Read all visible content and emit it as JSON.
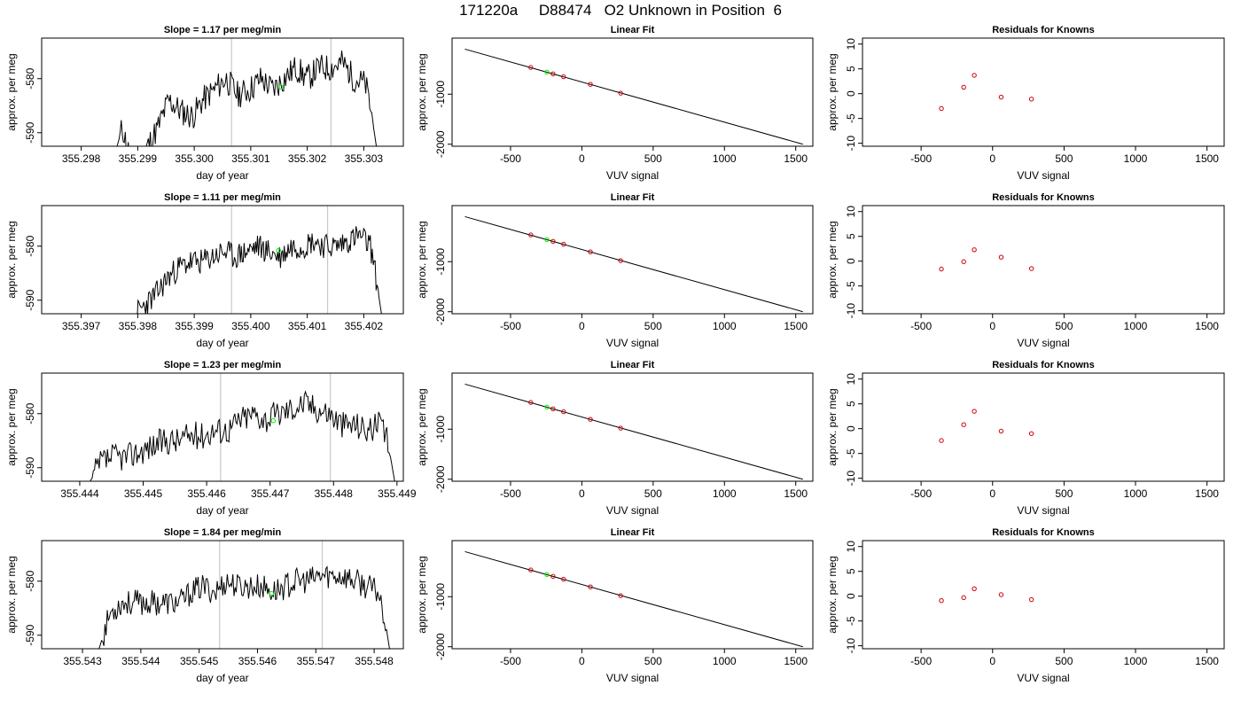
{
  "page": {
    "title": "171220a     D88474   O2 Unknown in Position  6"
  },
  "chart_data": [
    {
      "type": "line",
      "row": 0,
      "title": "Slope =  1.17  per meg/min",
      "xlabel": "day of year",
      "ylabel": "approx. per meg",
      "xlim": [
        355.2973,
        355.3037
      ],
      "ylim": [
        -592.5,
        -572.5
      ],
      "xticks": [
        355.298,
        355.299,
        355.3,
        355.301,
        355.302,
        355.303
      ],
      "xtick_labels": [
        "355.298",
        "355.299",
        "355.300",
        "355.301",
        "355.302",
        "355.303"
      ],
      "yticks": [
        -590,
        -580
      ],
      "ytick_labels": [
        "-590",
        "-580"
      ],
      "vlines": [
        355.30066,
        355.30242
      ],
      "marker": {
        "x": 355.30153,
        "y": -581.5
      },
      "series": [
        {
          "anchors": [
            [
              355.29862,
              -593
            ],
            [
              355.29873,
              -589
            ],
            [
              355.29882,
              -593
            ],
            [
              355.29895,
              -596
            ],
            [
              355.29915,
              -593
            ],
            [
              355.29936,
              -589
            ],
            [
              355.29955,
              -584
            ],
            [
              355.29976,
              -586
            ],
            [
              355.29997,
              -587
            ],
            [
              355.30015,
              -584
            ],
            [
              355.30036,
              -582
            ],
            [
              355.30056,
              -580
            ],
            [
              355.30077,
              -583
            ],
            [
              355.30098,
              -582
            ],
            [
              355.30118,
              -580
            ],
            [
              355.30139,
              -582
            ],
            [
              355.30159,
              -580
            ],
            [
              355.3018,
              -578
            ],
            [
              355.302,
              -580
            ],
            [
              355.30221,
              -578
            ],
            [
              355.30242,
              -578
            ],
            [
              355.30262,
              -577
            ],
            [
              355.30283,
              -580
            ],
            [
              355.30303,
              -581
            ],
            [
              355.30313,
              -586
            ],
            [
              355.30323,
              -593
            ]
          ],
          "seed": 11,
          "amp": 2.6
        }
      ]
    },
    {
      "type": "line",
      "row": 1,
      "title": "Slope =  1.11  per meg/min",
      "xlabel": "day of year",
      "ylabel": "approx. per meg",
      "xlim": [
        355.3963,
        355.4027
      ],
      "ylim": [
        -592.5,
        -572.5
      ],
      "xticks": [
        355.397,
        355.398,
        355.399,
        355.4,
        355.401,
        355.402
      ],
      "xtick_labels": [
        "355.397",
        "355.398",
        "355.399",
        "355.400",
        "355.401",
        "355.402"
      ],
      "yticks": [
        -590,
        -580
      ],
      "ytick_labels": [
        "-590",
        "-580"
      ],
      "vlines": [
        355.39966,
        355.40136
      ],
      "marker": {
        "x": 355.40049,
        "y": -580.8
      },
      "series": [
        {
          "anchors": [
            [
              355.39792,
              -593
            ],
            [
              355.39812,
              -591
            ],
            [
              355.39832,
              -589
            ],
            [
              355.39852,
              -586
            ],
            [
              355.39872,
              -584
            ],
            [
              355.39892,
              -583
            ],
            [
              355.39912,
              -583
            ],
            [
              355.39932,
              -582
            ],
            [
              355.39952,
              -581
            ],
            [
              355.39972,
              -582
            ],
            [
              355.39992,
              -581
            ],
            [
              355.40012,
              -580
            ],
            [
              355.40032,
              -581
            ],
            [
              355.40052,
              -582
            ],
            [
              355.40072,
              -580
            ],
            [
              355.40092,
              -580
            ],
            [
              355.40112,
              -579
            ],
            [
              355.40132,
              -580
            ],
            [
              355.40152,
              -580
            ],
            [
              355.40172,
              -579
            ],
            [
              355.40192,
              -578
            ],
            [
              355.40212,
              -580
            ],
            [
              355.40222,
              -586
            ],
            [
              355.40232,
              -593
            ]
          ],
          "seed": 23,
          "amp": 2.4
        }
      ]
    },
    {
      "type": "line",
      "row": 2,
      "title": "Slope =  1.23  per meg/min",
      "xlabel": "day of year",
      "ylabel": "approx. per meg",
      "xlim": [
        355.4437,
        355.4494
      ],
      "ylim": [
        -592.5,
        -572.5
      ],
      "xticks": [
        355.4443,
        355.4453,
        355.4463,
        355.4473,
        355.4483,
        355.4493
      ],
      "xtick_labels": [
        "355.444",
        "355.445",
        "355.446",
        "355.447",
        "355.448",
        "355.449"
      ],
      "yticks": [
        -590,
        -580
      ],
      "ytick_labels": [
        "-590",
        "-580"
      ],
      "vlines": [
        355.44652,
        355.44825
      ],
      "marker": {
        "x": 355.44735,
        "y": -581.3
      },
      "series": [
        {
          "anchors": [
            [
              355.44444,
              -593
            ],
            [
              355.44464,
              -589
            ],
            [
              355.44484,
              -588
            ],
            [
              355.44504,
              -588
            ],
            [
              355.44524,
              -587
            ],
            [
              355.44544,
              -586
            ],
            [
              355.44564,
              -585
            ],
            [
              355.44584,
              -585
            ],
            [
              355.44604,
              -584
            ],
            [
              355.44624,
              -584
            ],
            [
              355.44644,
              -583
            ],
            [
              355.44664,
              -583
            ],
            [
              355.44684,
              -581
            ],
            [
              355.44704,
              -580
            ],
            [
              355.44724,
              -581
            ],
            [
              355.44744,
              -580
            ],
            [
              355.44764,
              -579
            ],
            [
              355.44784,
              -578
            ],
            [
              355.44804,
              -579
            ],
            [
              355.44824,
              -580
            ],
            [
              355.44844,
              -582
            ],
            [
              355.44864,
              -582
            ],
            [
              355.44884,
              -583
            ],
            [
              355.44904,
              -582
            ],
            [
              355.44917,
              -586
            ],
            [
              355.44927,
              -593
            ]
          ],
          "seed": 37,
          "amp": 2.6
        }
      ]
    },
    {
      "type": "line",
      "row": 3,
      "title": "Slope =  1.84  per meg/min",
      "xlabel": "day of year",
      "ylabel": "approx. per meg",
      "xlim": [
        355.5424,
        355.5486
      ],
      "ylim": [
        -592.5,
        -572.5
      ],
      "xticks": [
        355.5431,
        355.5441,
        355.5451,
        355.5461,
        355.5471,
        355.5481
      ],
      "xtick_labels": [
        "355.543",
        "355.544",
        "355.545",
        "355.546",
        "355.547",
        "355.548"
      ],
      "yticks": [
        -590,
        -580
      ],
      "ytick_labels": [
        "-590",
        "-580"
      ],
      "vlines": [
        355.54545,
        355.54721
      ],
      "marker": {
        "x": 355.54634,
        "y": -582.3
      },
      "series": [
        {
          "anchors": [
            [
              355.54337,
              -593
            ],
            [
              355.54357,
              -586
            ],
            [
              355.54377,
              -584
            ],
            [
              355.54397,
              -584
            ],
            [
              355.54417,
              -584
            ],
            [
              355.54437,
              -584
            ],
            [
              355.54457,
              -584
            ],
            [
              355.54477,
              -584
            ],
            [
              355.54497,
              -582
            ],
            [
              355.54517,
              -581
            ],
            [
              355.54537,
              -582
            ],
            [
              355.54557,
              -580
            ],
            [
              355.54577,
              -581
            ],
            [
              355.54597,
              -581
            ],
            [
              355.54617,
              -581
            ],
            [
              355.54637,
              -582
            ],
            [
              355.54657,
              -581
            ],
            [
              355.54677,
              -580
            ],
            [
              355.54697,
              -580
            ],
            [
              355.54717,
              -579
            ],
            [
              355.54737,
              -579
            ],
            [
              355.54757,
              -579
            ],
            [
              355.54777,
              -580
            ],
            [
              355.54797,
              -581
            ],
            [
              355.54817,
              -582
            ],
            [
              355.54827,
              -586
            ],
            [
              355.54837,
              -593
            ]
          ],
          "seed": 53,
          "amp": 2.4
        }
      ]
    },
    {
      "type": "scatter",
      "row": 0,
      "title": "Linear Fit",
      "xlabel": "VUV signal",
      "ylabel": "approx. per meg",
      "xlim": [
        -910,
        1620
      ],
      "ylim": [
        -2040,
        120
      ],
      "xticks": [
        -500,
        0,
        500,
        1000,
        1500
      ],
      "xtick_labels": [
        "-500",
        "0",
        "500",
        "1000",
        "1500"
      ],
      "yticks": [
        -2000,
        -1000
      ],
      "ytick_labels": [
        "-2000",
        "-1000"
      ],
      "fit_line": {
        "x": [
          -820,
          1550
        ],
        "y": [
          -100,
          -2000
        ]
      },
      "points": {
        "x": [
          -358,
          -202,
          -128,
          60,
          272
        ],
        "y": [
          -466,
          -594,
          -652,
          -804,
          -980
        ]
      },
      "unknown": {
        "x": -245,
        "y": -558
      }
    },
    {
      "type": "scatter",
      "row": 1,
      "title": "Linear Fit",
      "xlabel": "VUV signal",
      "ylabel": "approx. per meg",
      "xlim": [
        -910,
        1620
      ],
      "ylim": [
        -2040,
        120
      ],
      "xticks": [
        -500,
        0,
        500,
        1000,
        1500
      ],
      "xtick_labels": [
        "-500",
        "0",
        "500",
        "1000",
        "1500"
      ],
      "yticks": [
        -2000,
        -1000
      ],
      "ytick_labels": [
        "-2000",
        "-1000"
      ],
      "fit_line": {
        "x": [
          -820,
          1550
        ],
        "y": [
          -100,
          -2000
        ]
      },
      "points": {
        "x": [
          -358,
          -202,
          -128,
          60,
          272
        ],
        "y": [
          -466,
          -594,
          -652,
          -804,
          -980
        ]
      },
      "unknown": {
        "x": -245,
        "y": -558
      }
    },
    {
      "type": "scatter",
      "row": 2,
      "title": "Linear Fit",
      "xlabel": "VUV signal",
      "ylabel": "approx. per meg",
      "xlim": [
        -910,
        1620
      ],
      "ylim": [
        -2040,
        120
      ],
      "xticks": [
        -500,
        0,
        500,
        1000,
        1500
      ],
      "xtick_labels": [
        "-500",
        "0",
        "500",
        "1000",
        "1500"
      ],
      "yticks": [
        -2000,
        -1000
      ],
      "ytick_labels": [
        "-2000",
        "-1000"
      ],
      "fit_line": {
        "x": [
          -820,
          1550
        ],
        "y": [
          -100,
          -2000
        ]
      },
      "points": {
        "x": [
          -358,
          -202,
          -128,
          60,
          272
        ],
        "y": [
          -466,
          -594,
          -652,
          -804,
          -980
        ]
      },
      "unknown": {
        "x": -245,
        "y": -558
      }
    },
    {
      "type": "scatter",
      "row": 3,
      "title": "Linear Fit",
      "xlabel": "VUV signal",
      "ylabel": "approx. per meg",
      "xlim": [
        -910,
        1620
      ],
      "ylim": [
        -2040,
        120
      ],
      "xticks": [
        -500,
        0,
        500,
        1000,
        1500
      ],
      "xtick_labels": [
        "-500",
        "0",
        "500",
        "1000",
        "1500"
      ],
      "yticks": [
        -2000,
        -1000
      ],
      "ytick_labels": [
        "-2000",
        "-1000"
      ],
      "fit_line": {
        "x": [
          -820,
          1550
        ],
        "y": [
          -100,
          -2000
        ]
      },
      "points": {
        "x": [
          -358,
          -202,
          -128,
          60,
          272
        ],
        "y": [
          -466,
          -594,
          -652,
          -804,
          -980
        ]
      },
      "unknown": {
        "x": -245,
        "y": -558
      }
    },
    {
      "type": "scatter",
      "row": 0,
      "title": "Residuals for Knowns",
      "xlabel": "VUV signal",
      "ylabel": "approx. per meg",
      "xlim": [
        -910,
        1620
      ],
      "ylim": [
        -10.6,
        11.2
      ],
      "xticks": [
        -500,
        0,
        500,
        1000,
        1500
      ],
      "xtick_labels": [
        "-500",
        "0",
        "500",
        "1000",
        "1500"
      ],
      "yticks": [
        -10,
        -5,
        0,
        5,
        10
      ],
      "ytick_labels": [
        "-10",
        "-5",
        "0",
        "5",
        "10"
      ],
      "points": {
        "x": [
          -358,
          -202,
          -128,
          60,
          272
        ],
        "y": [
          -3.0,
          1.3,
          3.7,
          -0.7,
          -1.1
        ]
      }
    },
    {
      "type": "scatter",
      "row": 1,
      "title": "Residuals for Knowns",
      "xlabel": "VUV signal",
      "ylabel": "approx. per meg",
      "xlim": [
        -910,
        1620
      ],
      "ylim": [
        -10.6,
        11.2
      ],
      "xticks": [
        -500,
        0,
        500,
        1000,
        1500
      ],
      "xtick_labels": [
        "-500",
        "0",
        "500",
        "1000",
        "1500"
      ],
      "yticks": [
        -10,
        -5,
        0,
        5,
        10
      ],
      "ytick_labels": [
        "-10",
        "-5",
        "0",
        "5",
        "10"
      ],
      "points": {
        "x": [
          -358,
          -202,
          -128,
          60,
          272
        ],
        "y": [
          -1.6,
          -0.1,
          2.3,
          0.8,
          -1.5
        ]
      }
    },
    {
      "type": "scatter",
      "row": 2,
      "title": "Residuals for Knowns",
      "xlabel": "VUV signal",
      "ylabel": "approx. per meg",
      "xlim": [
        -910,
        1620
      ],
      "ylim": [
        -10.6,
        11.2
      ],
      "xticks": [
        -500,
        0,
        500,
        1000,
        1500
      ],
      "xtick_labels": [
        "-500",
        "0",
        "500",
        "1000",
        "1500"
      ],
      "yticks": [
        -10,
        -5,
        0,
        5,
        10
      ],
      "ytick_labels": [
        "-10",
        "-5",
        "0",
        "5",
        "10"
      ],
      "points": {
        "x": [
          -358,
          -202,
          -128,
          60,
          272
        ],
        "y": [
          -2.4,
          0.8,
          3.5,
          -0.5,
          -1.0
        ]
      }
    },
    {
      "type": "scatter",
      "row": 3,
      "title": "Residuals for Knowns",
      "xlabel": "VUV signal",
      "ylabel": "approx. per meg",
      "xlim": [
        -910,
        1620
      ],
      "ylim": [
        -10.6,
        11.2
      ],
      "xticks": [
        -500,
        0,
        500,
        1000,
        1500
      ],
      "xtick_labels": [
        "-500",
        "0",
        "500",
        "1000",
        "1500"
      ],
      "yticks": [
        -10,
        -5,
        0,
        5,
        10
      ],
      "ytick_labels": [
        "-10",
        "-5",
        "0",
        "5",
        "10"
      ],
      "points": {
        "x": [
          -358,
          -202,
          -128,
          60,
          272
        ],
        "y": [
          -0.9,
          -0.3,
          1.5,
          0.3,
          -0.7
        ]
      }
    }
  ],
  "colors": {
    "line": "#000000",
    "vline": "#c8c8c8",
    "known_point": "#cc0000",
    "unknown_point": "#00ee00",
    "frame": "#000000"
  }
}
